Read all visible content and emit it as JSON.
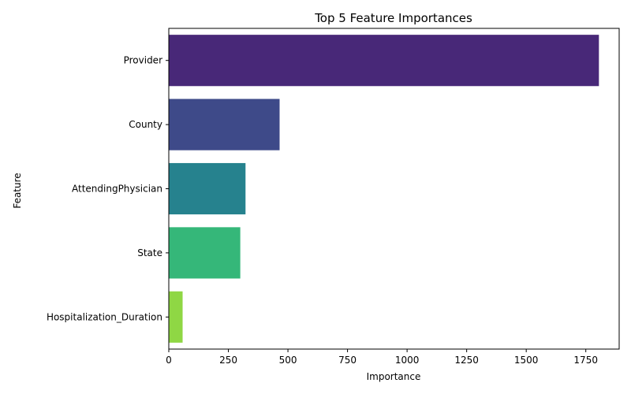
{
  "chart_data": {
    "type": "bar",
    "orientation": "horizontal",
    "title": "Top 5 Feature Importances",
    "xlabel": "Importance",
    "ylabel": "Feature",
    "categories": [
      "Provider",
      "County",
      "AttendingPhysician",
      "State",
      "Hospitalization_Duration"
    ],
    "values": [
      1805,
      465,
      322,
      300,
      58
    ],
    "colors": [
      "#482878",
      "#3e4a89",
      "#26828e",
      "#35b779",
      "#8fd744"
    ],
    "xlim": [
      0,
      1890
    ],
    "xticks": [
      0,
      250,
      500,
      750,
      1000,
      1250,
      1500,
      1750
    ],
    "grid": false,
    "legend": "none"
  }
}
